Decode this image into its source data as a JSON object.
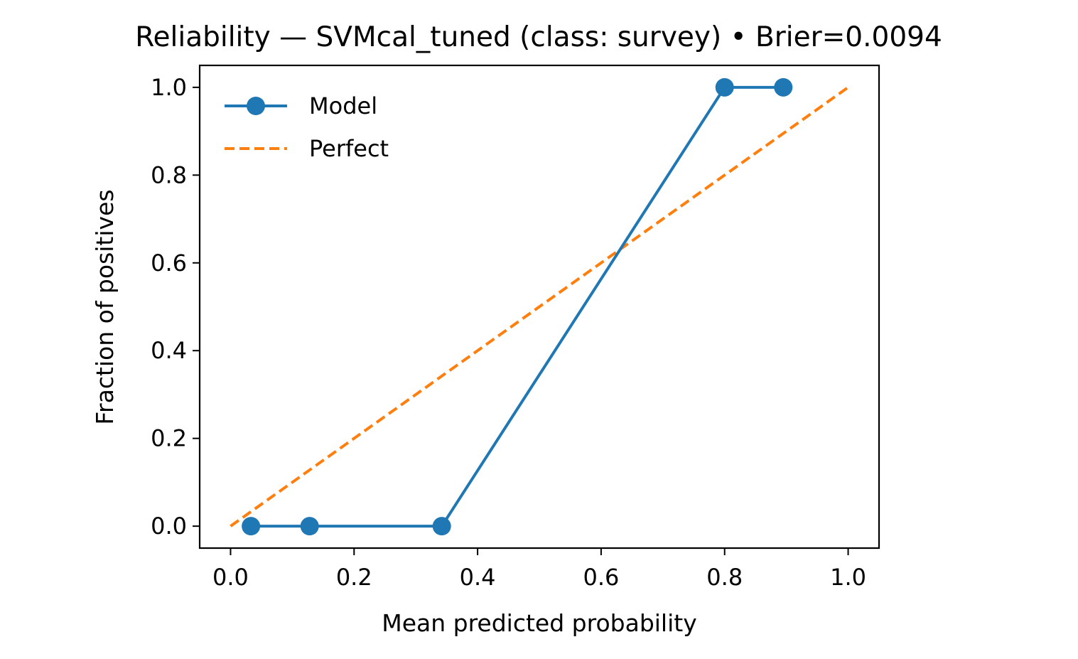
{
  "chart_data": {
    "type": "line",
    "title": "Reliability — SVMcal_tuned (class: survey) • Brier=0.0094",
    "xlabel": "Mean predicted probability",
    "ylabel": "Fraction of positives",
    "xlim": [
      -0.05,
      1.05
    ],
    "ylim": [
      -0.05,
      1.05
    ],
    "x_ticks": [
      "0.0",
      "0.2",
      "0.4",
      "0.6",
      "0.8",
      "1.0"
    ],
    "y_ticks": [
      "0.0",
      "0.2",
      "0.4",
      "0.6",
      "0.8",
      "1.0"
    ],
    "grid": false,
    "legend_position": "top-left",
    "series": [
      {
        "name": "Model",
        "color": "#1f77b4",
        "style": "solid-with-circle-markers",
        "x": [
          0.033,
          0.128,
          0.342,
          0.8,
          0.895
        ],
        "y": [
          0.0,
          0.0,
          0.0,
          1.0,
          1.0
        ]
      },
      {
        "name": "Perfect",
        "color": "#ff7f0e",
        "style": "dashed",
        "x": [
          0.0,
          1.0
        ],
        "y": [
          0.0,
          1.0
        ]
      }
    ]
  }
}
